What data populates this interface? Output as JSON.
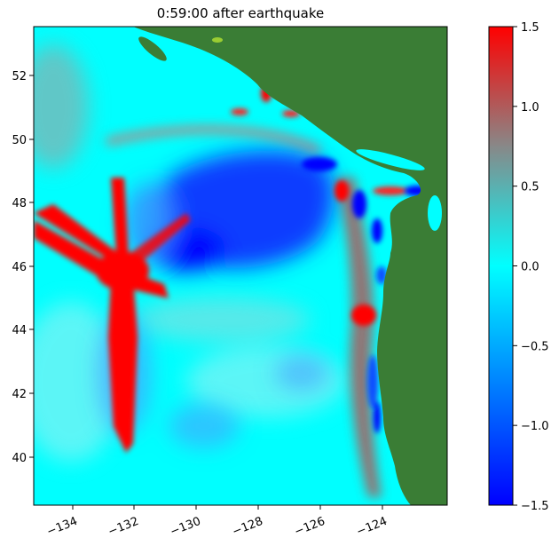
{
  "title": "0:59:00 after earthquake",
  "map": {
    "x_ticks": [
      "−134",
      "−132",
      "−130",
      "−128",
      "−126",
      "−124"
    ],
    "y_ticks": [
      "52",
      "50",
      "48",
      "46",
      "44",
      "42",
      "40"
    ],
    "land_color": "#3a7d35",
    "ocean_base_color": "#00ffff",
    "positive_color": "#ff0000",
    "negative_color": "#0000ff"
  },
  "colorbar": {
    "ticks": [
      "1.5",
      "1.0",
      "0.5",
      "0.0",
      "−0.5",
      "−1.0",
      "−1.5"
    ],
    "stops": [
      "#0000ff",
      "#00ffff",
      "#888888",
      "#ff0000"
    ]
  }
}
